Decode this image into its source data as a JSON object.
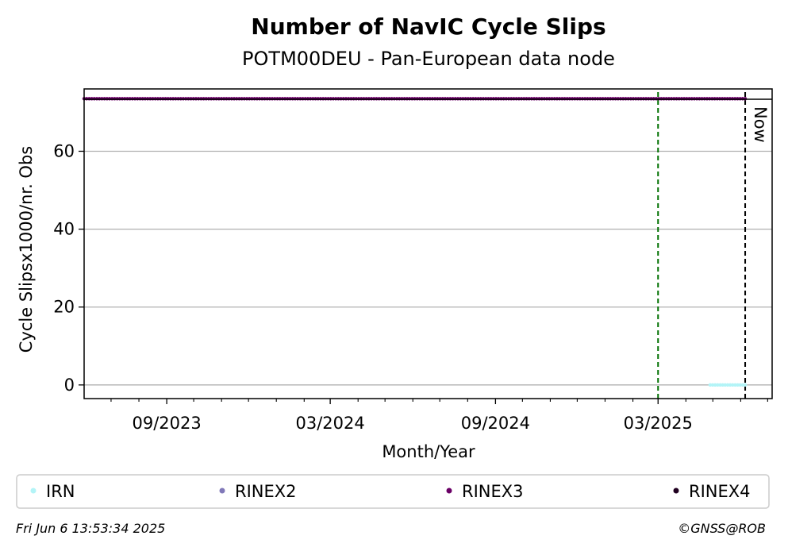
{
  "chart_data": {
    "type": "scatter",
    "title": "Number of NavIC Cycle Slips",
    "subtitle": "POTM00DEU - Pan-European data node",
    "xlabel": "Month/Year",
    "ylabel": "Cycle Slipsx1000/nr. Obs",
    "x_range": [
      "2023-06-01",
      "2025-07-06"
    ],
    "ylim": [
      -3.5,
      76
    ],
    "y_ticks": [
      0,
      20,
      40,
      60
    ],
    "x_ticks": [
      {
        "date": "2023-09-01",
        "label": "09/2023"
      },
      {
        "date": "2024-03-01",
        "label": "03/2024"
      },
      {
        "date": "2024-09-01",
        "label": "09/2024"
      },
      {
        "date": "2025-03-01",
        "label": "03/2025"
      }
    ],
    "grid": "horizontal",
    "series": [
      {
        "name": "IRN",
        "color": "#b3f4f7",
        "x_start": "2025-04-28",
        "x_end": "2025-06-06",
        "y": 0
      },
      {
        "name": "RINEX2",
        "color": "#8078b8",
        "points": []
      },
      {
        "name": "RINEX3",
        "color": "#6a0066",
        "x_start": "2023-06-01",
        "x_end": "2025-06-06",
        "y": 73.5
      },
      {
        "name": "RINEX4",
        "color": "#200020",
        "points": []
      }
    ],
    "markers": [
      {
        "date": "2025-03-01",
        "color": "#007000",
        "label": ""
      },
      {
        "date": "2025-06-06",
        "color": "#000000",
        "label": "Now"
      }
    ],
    "legend_position": "bottom"
  },
  "footer": {
    "timestamp": "Fri Jun  6 13:53:34 2025",
    "credit": "©GNSS@ROB"
  }
}
